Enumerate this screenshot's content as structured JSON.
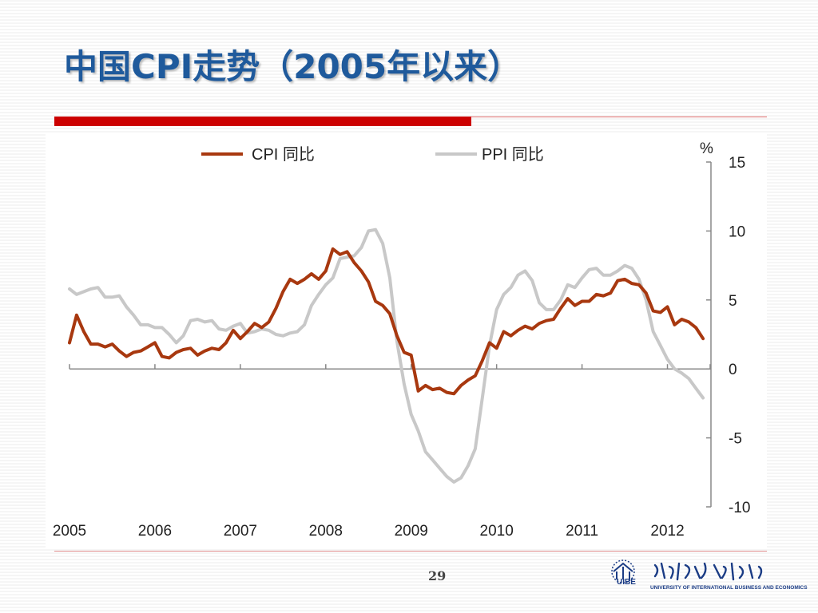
{
  "slide": {
    "title": "中国CPI走势（2005年以来）",
    "page_number": "29",
    "logo_text": "UNIVERSITY OF INTERNATIONAL BUSINESS AND ECONOMICS",
    "logo_abbr": "UIBE"
  },
  "colors": {
    "title": "#1f5a9c",
    "accent_bar": "#cc0000",
    "cpi": "#a8380f",
    "ppi": "#c8c8c8"
  },
  "chart_data": {
    "type": "line",
    "title": "",
    "unit_label": "%",
    "xlabel": "",
    "ylabel": "",
    "ylim": [
      -10,
      15
    ],
    "yticks": [
      15,
      10,
      5,
      0,
      -5,
      -10
    ],
    "xlim": [
      2005,
      2012.5
    ],
    "xticks": [
      "2005",
      "2006",
      "2007",
      "2008",
      "2009",
      "2010",
      "2011",
      "2012"
    ],
    "legend_position": "top",
    "grid": false,
    "series": [
      {
        "name": "CPI 同比",
        "color": "#a8380f",
        "x": [
          2005.0,
          2005.083,
          2005.167,
          2005.25,
          2005.333,
          2005.417,
          2005.5,
          2005.583,
          2005.667,
          2005.75,
          2005.833,
          2005.917,
          2006.0,
          2006.083,
          2006.167,
          2006.25,
          2006.333,
          2006.417,
          2006.5,
          2006.583,
          2006.667,
          2006.75,
          2006.833,
          2006.917,
          2007.0,
          2007.083,
          2007.167,
          2007.25,
          2007.333,
          2007.417,
          2007.5,
          2007.583,
          2007.667,
          2007.75,
          2007.833,
          2007.917,
          2008.0,
          2008.083,
          2008.167,
          2008.25,
          2008.333,
          2008.417,
          2008.5,
          2008.583,
          2008.667,
          2008.75,
          2008.833,
          2008.917,
          2009.0,
          2009.083,
          2009.167,
          2009.25,
          2009.333,
          2009.417,
          2009.5,
          2009.583,
          2009.667,
          2009.75,
          2009.833,
          2009.917,
          2010.0,
          2010.083,
          2010.167,
          2010.25,
          2010.333,
          2010.417,
          2010.5,
          2010.583,
          2010.667,
          2010.75,
          2010.833,
          2010.917,
          2011.0,
          2011.083,
          2011.167,
          2011.25,
          2011.333,
          2011.417,
          2011.5,
          2011.583,
          2011.667,
          2011.75,
          2011.833,
          2011.917,
          2012.0,
          2012.083,
          2012.167,
          2012.25,
          2012.333,
          2012.417
        ],
        "values": [
          1.9,
          3.9,
          2.7,
          1.8,
          1.8,
          1.6,
          1.8,
          1.3,
          0.9,
          1.2,
          1.3,
          1.6,
          1.9,
          0.9,
          0.8,
          1.2,
          1.4,
          1.5,
          1.0,
          1.3,
          1.5,
          1.4,
          1.9,
          2.8,
          2.2,
          2.7,
          3.3,
          3.0,
          3.4,
          4.4,
          5.6,
          6.5,
          6.2,
          6.5,
          6.9,
          6.5,
          7.1,
          8.7,
          8.3,
          8.5,
          7.7,
          7.1,
          6.3,
          4.9,
          4.6,
          4.0,
          2.4,
          1.2,
          1.0,
          -1.6,
          -1.2,
          -1.5,
          -1.4,
          -1.7,
          -1.8,
          -1.2,
          -0.8,
          -0.5,
          0.6,
          1.9,
          1.5,
          2.7,
          2.4,
          2.8,
          3.1,
          2.9,
          3.3,
          3.5,
          3.6,
          4.4,
          5.1,
          4.6,
          4.9,
          4.9,
          5.4,
          5.3,
          5.5,
          6.4,
          6.5,
          6.2,
          6.1,
          5.5,
          4.2,
          4.1,
          4.5,
          3.2,
          3.6,
          3.4,
          3.0,
          2.2
        ]
      },
      {
        "name": "PPI 同比",
        "color": "#c8c8c8",
        "x": [
          2005.0,
          2005.083,
          2005.167,
          2005.25,
          2005.333,
          2005.417,
          2005.5,
          2005.583,
          2005.667,
          2005.75,
          2005.833,
          2005.917,
          2006.0,
          2006.083,
          2006.167,
          2006.25,
          2006.333,
          2006.417,
          2006.5,
          2006.583,
          2006.667,
          2006.75,
          2006.833,
          2006.917,
          2007.0,
          2007.083,
          2007.167,
          2007.25,
          2007.333,
          2007.417,
          2007.5,
          2007.583,
          2007.667,
          2007.75,
          2007.833,
          2007.917,
          2008.0,
          2008.083,
          2008.167,
          2008.25,
          2008.333,
          2008.417,
          2008.5,
          2008.583,
          2008.667,
          2008.75,
          2008.833,
          2008.917,
          2009.0,
          2009.083,
          2009.167,
          2009.25,
          2009.333,
          2009.417,
          2009.5,
          2009.583,
          2009.667,
          2009.75,
          2009.833,
          2009.917,
          2010.0,
          2010.083,
          2010.167,
          2010.25,
          2010.333,
          2010.417,
          2010.5,
          2010.583,
          2010.667,
          2010.75,
          2010.833,
          2010.917,
          2011.0,
          2011.083,
          2011.167,
          2011.25,
          2011.333,
          2011.417,
          2011.5,
          2011.583,
          2011.667,
          2011.75,
          2011.833,
          2011.917,
          2012.0,
          2012.083,
          2012.167,
          2012.25,
          2012.333,
          2012.417
        ],
        "values": [
          5.8,
          5.4,
          5.6,
          5.8,
          5.9,
          5.2,
          5.2,
          5.3,
          4.5,
          3.9,
          3.2,
          3.2,
          3.0,
          3.0,
          2.5,
          1.9,
          2.4,
          3.5,
          3.6,
          3.4,
          3.5,
          2.9,
          2.8,
          3.1,
          3.3,
          2.6,
          2.7,
          2.9,
          2.8,
          2.5,
          2.4,
          2.6,
          2.7,
          3.2,
          4.6,
          5.4,
          6.1,
          6.6,
          8.0,
          8.1,
          8.2,
          8.8,
          10.0,
          10.1,
          9.1,
          6.6,
          2.0,
          -1.1,
          -3.3,
          -4.5,
          -6.0,
          -6.6,
          -7.2,
          -7.8,
          -8.2,
          -7.9,
          -7.0,
          -5.8,
          -2.1,
          1.7,
          4.3,
          5.4,
          5.9,
          6.8,
          7.1,
          6.4,
          4.8,
          4.3,
          4.3,
          5.0,
          6.1,
          5.9,
          6.6,
          7.2,
          7.3,
          6.8,
          6.8,
          7.1,
          7.5,
          7.3,
          6.5,
          5.0,
          2.7,
          1.7,
          0.7,
          0.0,
          -0.3,
          -0.7,
          -1.4,
          -2.1
        ]
      }
    ]
  }
}
